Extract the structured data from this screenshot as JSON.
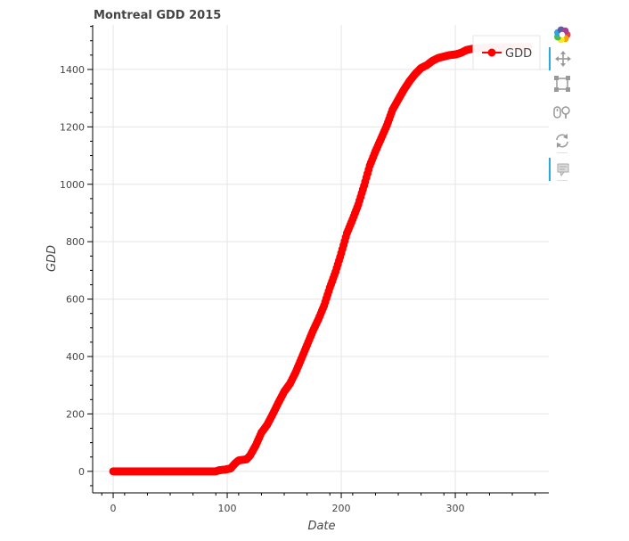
{
  "chart_data": {
    "type": "scatter",
    "title": "Montreal GDD 2015",
    "xlabel": "Date",
    "ylabel": "GDD",
    "xlim": [
      -18,
      382
    ],
    "ylim": [
      -75,
      1555
    ],
    "xticks": [
      0,
      100,
      200,
      300
    ],
    "yticks": [
      0,
      200,
      400,
      600,
      800,
      1000,
      1200,
      1400
    ],
    "grid": true,
    "legend_position": "top-right",
    "series": [
      {
        "name": "GDD",
        "color": "#ff0000",
        "markers": "circle",
        "points": [
          [
            0,
            0
          ],
          [
            20,
            0
          ],
          [
            40,
            0
          ],
          [
            60,
            0
          ],
          [
            80,
            0
          ],
          [
            90,
            0
          ],
          [
            93,
            4
          ],
          [
            98,
            6
          ],
          [
            103,
            10
          ],
          [
            107,
            28
          ],
          [
            110,
            38
          ],
          [
            117,
            42
          ],
          [
            120,
            55
          ],
          [
            125,
            90
          ],
          [
            130,
            135
          ],
          [
            135,
            162
          ],
          [
            140,
            200
          ],
          [
            145,
            240
          ],
          [
            150,
            278
          ],
          [
            155,
            305
          ],
          [
            160,
            345
          ],
          [
            165,
            392
          ],
          [
            170,
            440
          ],
          [
            175,
            488
          ],
          [
            180,
            530
          ],
          [
            185,
            578
          ],
          [
            190,
            640
          ],
          [
            195,
            695
          ],
          [
            200,
            760
          ],
          [
            205,
            830
          ],
          [
            210,
            878
          ],
          [
            215,
            930
          ],
          [
            220,
            995
          ],
          [
            225,
            1065
          ],
          [
            230,
            1115
          ],
          [
            235,
            1160
          ],
          [
            240,
            1205
          ],
          [
            245,
            1260
          ],
          [
            250,
            1295
          ],
          [
            255,
            1330
          ],
          [
            260,
            1360
          ],
          [
            265,
            1385
          ],
          [
            270,
            1405
          ],
          [
            275,
            1415
          ],
          [
            280,
            1430
          ],
          [
            285,
            1440
          ],
          [
            290,
            1445
          ],
          [
            295,
            1450
          ],
          [
            300,
            1452
          ],
          [
            305,
            1458
          ],
          [
            310,
            1468
          ],
          [
            315,
            1472
          ],
          [
            320,
            1474
          ],
          [
            330,
            1476
          ],
          [
            340,
            1477
          ],
          [
            350,
            1477
          ],
          [
            364,
            1478
          ]
        ]
      }
    ]
  },
  "toolbar": {
    "tools": [
      {
        "name": "bokeh-logo-icon",
        "active": false
      },
      {
        "name": "pan-icon",
        "active": true
      },
      {
        "name": "box-zoom-icon",
        "active": false
      },
      {
        "name": "wheel-zoom-icon",
        "active": false
      },
      {
        "name": "reset-icon",
        "active": false
      },
      {
        "name": "hover-icon",
        "active": true
      }
    ],
    "logo_colors": [
      "#e5424d",
      "#f7a600",
      "#fde725",
      "#54b948",
      "#26aae1",
      "#5b5ea6",
      "#a63d97"
    ]
  }
}
